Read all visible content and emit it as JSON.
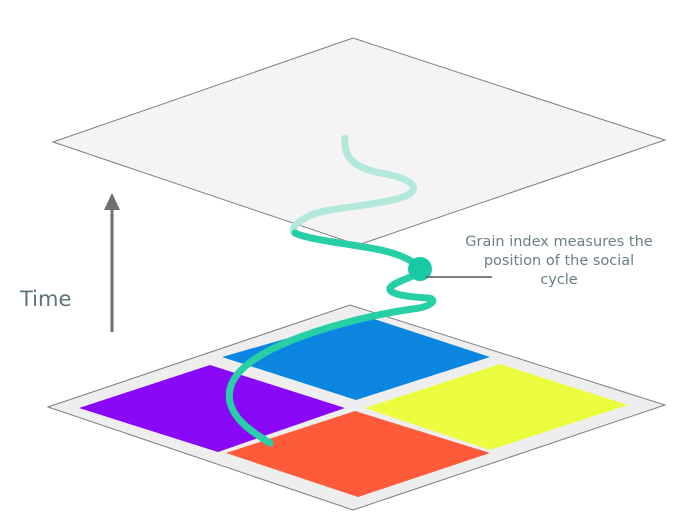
{
  "labels": {
    "time": "Time",
    "annotation": "Grain index measures the position of the social cycle"
  },
  "colors": {
    "top_plane": "#f4f4f4",
    "plane_stroke": "#7d7d7d",
    "bottom_plane": "#eeeeee",
    "quadrant_blue": "#0a86e0",
    "quadrant_yellow": "#ecfc3f",
    "quadrant_red": "#ff5a3a",
    "quadrant_purple": "#8a08f8",
    "path_solid": "#26cfa6",
    "path_faded": "#b3e9dc",
    "marker": "#17c9a5",
    "arrow": "#6f6f6f",
    "text": "#5d7380"
  }
}
